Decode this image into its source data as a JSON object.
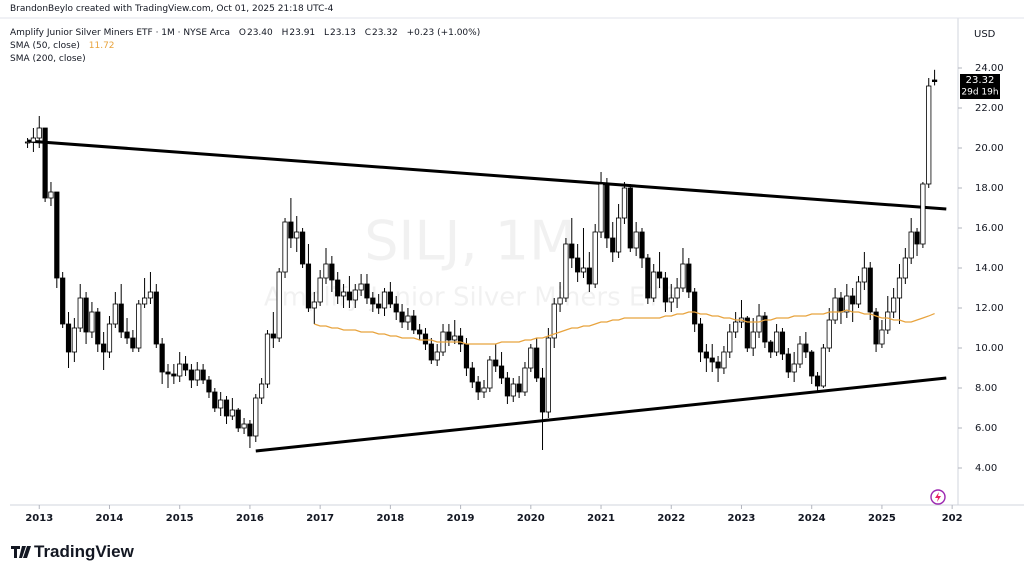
{
  "header": {
    "credit": "BrandonBeylo created with TradingView.com, Oct 01, 2025 21:18 UTC-4",
    "symbol": "Amplify Junior Silver Miners ETF · 1M · NYSE Arca",
    "ohlc": [
      {
        "key": "O",
        "value": "23.40"
      },
      {
        "key": "H",
        "value": "23.91"
      },
      {
        "key": "L",
        "value": "23.13"
      },
      {
        "key": "C",
        "value": "23.32"
      }
    ],
    "change": "+0.23 (+1.00%)"
  },
  "brand": "TradingView",
  "chart_data": {
    "type": "candlestick",
    "watermark": {
      "symbol": "SILJ, 1M",
      "name": "Amplify Junior Silver Miners ETF"
    },
    "currency": "USD",
    "last_label": "23.32",
    "countdown": "29d 19h",
    "up_color": "#ffffff",
    "down_color": "#000000",
    "outline_color": "#000000",
    "xlim": [
      "2012-08",
      "2026-02"
    ],
    "xticks": [
      {
        "value": "2013-01",
        "label": "2013"
      },
      {
        "value": "2014-01",
        "label": "2014"
      },
      {
        "value": "2015-01",
        "label": "2015"
      },
      {
        "value": "2016-01",
        "label": "2016"
      },
      {
        "value": "2017-01",
        "label": "2017"
      },
      {
        "value": "2018-01",
        "label": "2018"
      },
      {
        "value": "2019-01",
        "label": "2019"
      },
      {
        "value": "2020-01",
        "label": "2020"
      },
      {
        "value": "2021-01",
        "label": "2021"
      },
      {
        "value": "2022-01",
        "label": "2022"
      },
      {
        "value": "2023-01",
        "label": "2023"
      },
      {
        "value": "2024-01",
        "label": "2024"
      },
      {
        "value": "2025-01",
        "label": "2025"
      },
      {
        "value": "2026-01",
        "label": "202"
      }
    ],
    "ylim": [
      2.15,
      26.3
    ],
    "yticks": [
      {
        "value": 4,
        "label": "4.00"
      },
      {
        "value": 6,
        "label": "6.00"
      },
      {
        "value": 8,
        "label": "8.00"
      },
      {
        "value": 10,
        "label": "10.00"
      },
      {
        "value": 12,
        "label": "12.00"
      },
      {
        "value": 14,
        "label": "14.00"
      },
      {
        "value": 16,
        "label": "16.00"
      },
      {
        "value": 18,
        "label": "18.00"
      },
      {
        "value": 20,
        "label": "20.00"
      },
      {
        "value": 22,
        "label": "22.00"
      },
      {
        "value": 24,
        "label": "24.00"
      }
    ],
    "x": [
      "2012-11",
      "2012-12",
      "2013-01",
      "2013-02",
      "2013-03",
      "2013-04",
      "2013-05",
      "2013-06",
      "2013-07",
      "2013-08",
      "2013-09",
      "2013-10",
      "2013-11",
      "2013-12",
      "2014-01",
      "2014-02",
      "2014-03",
      "2014-04",
      "2014-05",
      "2014-06",
      "2014-07",
      "2014-08",
      "2014-09",
      "2014-10",
      "2014-11",
      "2014-12",
      "2015-01",
      "2015-02",
      "2015-03",
      "2015-04",
      "2015-05",
      "2015-06",
      "2015-07",
      "2015-08",
      "2015-09",
      "2015-10",
      "2015-11",
      "2015-12",
      "2016-01",
      "2016-02",
      "2016-03",
      "2016-04",
      "2016-05",
      "2016-06",
      "2016-07",
      "2016-08",
      "2016-09",
      "2016-10",
      "2016-11",
      "2016-12",
      "2017-01",
      "2017-02",
      "2017-03",
      "2017-04",
      "2017-05",
      "2017-06",
      "2017-07",
      "2017-08",
      "2017-09",
      "2017-10",
      "2017-11",
      "2017-12",
      "2018-01",
      "2018-02",
      "2018-03",
      "2018-04",
      "2018-05",
      "2018-06",
      "2018-07",
      "2018-08",
      "2018-09",
      "2018-10",
      "2018-11",
      "2018-12",
      "2019-01",
      "2019-02",
      "2019-03",
      "2019-04",
      "2019-05",
      "2019-06",
      "2019-07",
      "2019-08",
      "2019-09",
      "2019-10",
      "2019-11",
      "2019-12",
      "2020-01",
      "2020-02",
      "2020-03",
      "2020-04",
      "2020-05",
      "2020-06",
      "2020-07",
      "2020-08",
      "2020-09",
      "2020-10",
      "2020-11",
      "2020-12",
      "2021-01",
      "2021-02",
      "2021-03",
      "2021-04",
      "2021-05",
      "2021-06",
      "2021-07",
      "2021-08",
      "2021-09",
      "2021-10",
      "2021-11",
      "2021-12",
      "2022-01",
      "2022-02",
      "2022-03",
      "2022-04",
      "2022-05",
      "2022-06",
      "2022-07",
      "2022-08",
      "2022-09",
      "2022-10",
      "2022-11",
      "2022-12",
      "2023-01",
      "2023-02",
      "2023-03",
      "2023-04",
      "2023-05",
      "2023-06",
      "2023-07",
      "2023-08",
      "2023-09",
      "2023-10",
      "2023-11",
      "2023-12",
      "2024-01",
      "2024-02",
      "2024-03",
      "2024-04",
      "2024-05",
      "2024-06",
      "2024-07",
      "2024-08",
      "2024-09",
      "2024-10",
      "2024-11",
      "2024-12",
      "2025-01",
      "2025-02",
      "2025-03",
      "2025-04",
      "2025-05",
      "2025-06",
      "2025-07",
      "2025-08",
      "2025-09",
      "2025-10"
    ],
    "open": [
      20.3,
      20.3,
      20.5,
      21.0,
      17.5,
      17.8,
      13.5,
      11.2,
      9.8,
      11.0,
      12.5,
      10.8,
      11.8,
      10.2,
      9.8,
      11.2,
      12.2,
      10.8,
      10.5,
      10.0,
      12.2,
      12.5,
      12.8,
      10.2,
      8.8,
      8.7,
      8.6,
      9.2,
      8.9,
      8.4,
      8.9,
      8.4,
      7.8,
      7.0,
      7.4,
      6.6,
      6.9,
      6.0,
      6.2,
      5.6,
      7.5,
      8.2,
      10.7,
      10.5,
      13.8,
      16.3,
      15.5,
      15.8,
      14.2,
      12.0,
      12.3,
      13.5,
      14.2,
      13.4,
      12.6,
      12.8,
      12.4,
      12.9,
      13.2,
      12.5,
      12.2,
      12.0,
      12.8,
      12.2,
      11.8,
      11.3,
      11.6,
      10.9,
      10.7,
      10.2,
      9.4,
      9.8,
      10.8,
      10.4,
      10.6,
      10.2,
      9.0,
      8.3,
      7.8,
      8.0,
      9.4,
      9.1,
      8.5,
      7.6,
      8.2,
      7.8,
      9.0,
      10.0,
      8.5,
      6.8,
      10.5,
      12.2,
      12.5,
      15.2,
      14.5,
      13.8,
      14.0,
      13.2,
      15.8,
      18.2,
      15.5,
      14.8,
      16.5,
      18.0,
      15.0,
      15.8,
      14.5,
      12.5,
      13.8,
      13.5,
      12.3,
      12.5,
      13.0,
      14.2,
      12.8,
      11.2,
      9.8,
      9.5,
      9.3,
      9.0,
      9.8,
      10.8,
      11.3,
      11.5,
      10.0,
      10.8,
      11.6,
      10.3,
      9.8,
      10.8,
      9.7,
      8.8,
      9.2,
      10.2,
      9.8,
      8.6,
      8.1,
      10.0,
      11.4,
      12.5,
      11.8,
      12.6,
      12.2,
      13.3,
      14.0,
      11.8,
      10.2,
      10.9,
      11.8,
      12.5,
      13.5,
      14.5,
      15.8,
      15.2,
      18.2,
      23.4
    ],
    "high": [
      20.5,
      21.0,
      21.6,
      21.0,
      18.3,
      17.8,
      13.8,
      11.8,
      11.5,
      13.2,
      12.8,
      12.3,
      12.0,
      10.8,
      11.6,
      12.8,
      13.2,
      11.5,
      10.9,
      12.4,
      13.5,
      13.8,
      13.2,
      10.5,
      9.2,
      9.2,
      9.8,
      9.6,
      9.2,
      9.3,
      9.2,
      8.6,
      8.0,
      7.8,
      7.6,
      7.5,
      7.0,
      6.5,
      6.4,
      7.7,
      8.5,
      10.9,
      11.8,
      14.0,
      16.5,
      17.5,
      16.6,
      16.0,
      15.2,
      12.8,
      13.9,
      15.0,
      14.6,
      13.8,
      13.2,
      13.6,
      13.2,
      13.7,
      13.7,
      12.8,
      12.7,
      13.0,
      13.3,
      12.6,
      12.2,
      12.0,
      11.9,
      11.2,
      11.0,
      10.5,
      10.2,
      11.2,
      11.2,
      11.4,
      11.0,
      10.5,
      9.3,
      8.6,
      8.4,
      9.6,
      10.2,
      9.8,
      8.8,
      8.5,
      8.6,
      9.3,
      10.2,
      10.5,
      9.0,
      11.0,
      12.5,
      13.3,
      15.5,
      16.5,
      15.2,
      16.0,
      14.8,
      16.2,
      18.8,
      18.5,
      16.3,
      17.2,
      18.3,
      18.2,
      16.3,
      16.0,
      14.7,
      14.2,
      14.8,
      13.8,
      13.2,
      13.5,
      15.0,
      14.5,
      13.0,
      11.5,
      10.2,
      10.2,
      9.6,
      10.1,
      11.2,
      11.8,
      12.4,
      11.6,
      11.5,
      12.2,
      11.8,
      10.4,
      11.2,
      11.0,
      10.0,
      9.8,
      10.6,
      10.8,
      9.9,
      8.8,
      10.2,
      12.0,
      13.0,
      12.8,
      13.2,
      13.0,
      13.6,
      14.8,
      14.3,
      12.0,
      11.4,
      12.6,
      13.0,
      14.2,
      15.0,
      16.5,
      16.0,
      18.3,
      23.5,
      23.91
    ],
    "low": [
      20.0,
      19.8,
      20.0,
      17.3,
      17.1,
      13.0,
      11.0,
      9.0,
      9.3,
      10.8,
      10.2,
      10.5,
      9.8,
      8.9,
      9.5,
      11.0,
      10.5,
      10.2,
      9.8,
      9.8,
      12.0,
      12.2,
      10.0,
      8.2,
      8.0,
      8.2,
      8.3,
      8.6,
      8.0,
      8.1,
      8.2,
      7.5,
      6.8,
      6.6,
      6.2,
      6.4,
      5.8,
      5.7,
      5.0,
      5.3,
      7.2,
      8.0,
      10.0,
      10.3,
      13.5,
      15.0,
      14.8,
      14.0,
      11.8,
      11.2,
      12.1,
      13.2,
      12.8,
      12.2,
      12.0,
      12.0,
      12.0,
      12.6,
      12.2,
      11.8,
      11.7,
      11.6,
      12.0,
      11.4,
      11.0,
      10.9,
      10.7,
      10.4,
      9.9,
      9.2,
      9.1,
      9.6,
      10.1,
      10.2,
      9.8,
      8.6,
      8.0,
      7.4,
      7.5,
      7.8,
      8.8,
      8.2,
      7.2,
      7.3,
      7.5,
      7.6,
      8.8,
      8.3,
      4.9,
      6.5,
      10.0,
      11.8,
      12.3,
      14.0,
      13.3,
      13.5,
      12.8,
      13.0,
      15.5,
      15.0,
      14.3,
      14.5,
      16.2,
      14.8,
      14.6,
      14.0,
      12.2,
      12.3,
      13.0,
      11.8,
      11.8,
      12.0,
      12.8,
      12.5,
      10.8,
      9.3,
      8.8,
      8.8,
      8.3,
      8.7,
      9.5,
      10.5,
      11.0,
      9.8,
      9.6,
      10.5,
      10.0,
      9.5,
      9.6,
      9.4,
      8.5,
      8.3,
      9.0,
      9.5,
      8.2,
      7.8,
      8.0,
      9.8,
      11.2,
      11.2,
      11.5,
      11.3,
      12.0,
      12.9,
      11.4,
      9.8,
      10.0,
      10.7,
      11.5,
      11.2,
      13.2,
      14.2,
      14.6,
      15.0,
      18.0,
      23.13
    ],
    "close": [
      20.3,
      20.5,
      21.0,
      17.5,
      17.8,
      13.5,
      11.2,
      9.8,
      11.0,
      12.5,
      10.8,
      11.8,
      10.2,
      9.8,
      11.2,
      12.2,
      10.8,
      10.5,
      10.0,
      12.2,
      12.5,
      12.8,
      10.2,
      8.8,
      8.7,
      8.6,
      9.2,
      8.9,
      8.4,
      8.9,
      8.4,
      7.8,
      7.0,
      7.4,
      6.6,
      6.9,
      6.0,
      6.2,
      5.6,
      7.5,
      8.2,
      10.7,
      10.5,
      13.8,
      16.3,
      15.5,
      15.8,
      14.2,
      12.0,
      12.3,
      13.5,
      14.2,
      13.4,
      12.6,
      12.8,
      12.4,
      12.9,
      13.2,
      12.5,
      12.2,
      12.0,
      12.8,
      12.2,
      11.8,
      11.3,
      11.6,
      10.9,
      10.7,
      10.2,
      9.4,
      9.8,
      10.8,
      10.4,
      10.6,
      10.2,
      9.0,
      8.3,
      7.8,
      8.0,
      9.4,
      9.1,
      8.5,
      7.6,
      8.2,
      7.8,
      9.0,
      10.0,
      8.5,
      6.8,
      10.5,
      12.2,
      12.5,
      15.2,
      14.5,
      13.8,
      14.0,
      13.2,
      15.8,
      18.2,
      15.5,
      14.8,
      16.5,
      18.0,
      15.0,
      15.8,
      14.5,
      12.5,
      13.8,
      13.5,
      12.3,
      12.5,
      13.0,
      14.2,
      12.8,
      11.2,
      9.8,
      9.5,
      9.3,
      9.0,
      9.8,
      10.8,
      11.3,
      11.5,
      10.0,
      10.8,
      11.6,
      10.3,
      9.8,
      10.8,
      9.7,
      8.8,
      9.2,
      10.2,
      9.8,
      8.6,
      8.1,
      10.0,
      11.4,
      12.5,
      11.8,
      12.6,
      12.2,
      13.3,
      14.0,
      11.8,
      10.2,
      10.9,
      11.8,
      12.5,
      13.5,
      14.5,
      15.8,
      15.2,
      18.2,
      23.1,
      23.32
    ],
    "sma": {
      "name": "SMA (50, close)",
      "value_label": "11.72",
      "color": "#e8a33d",
      "values": [
        null,
        null,
        null,
        null,
        null,
        null,
        null,
        null,
        null,
        null,
        null,
        null,
        null,
        null,
        null,
        null,
        null,
        null,
        null,
        null,
        null,
        null,
        null,
        null,
        null,
        null,
        null,
        null,
        null,
        null,
        null,
        null,
        null,
        null,
        null,
        null,
        null,
        null,
        null,
        null,
        null,
        null,
        null,
        null,
        null,
        null,
        null,
        null,
        null,
        11.2,
        11.1,
        11.1,
        11.0,
        11.0,
        10.9,
        10.9,
        10.9,
        10.8,
        10.8,
        10.8,
        10.7,
        10.7,
        10.6,
        10.6,
        10.5,
        10.5,
        10.5,
        10.4,
        10.4,
        10.4,
        10.3,
        10.3,
        10.3,
        10.3,
        10.3,
        10.2,
        10.2,
        10.2,
        10.2,
        10.2,
        10.2,
        10.3,
        10.3,
        10.3,
        10.3,
        10.4,
        10.4,
        10.5,
        10.5,
        10.6,
        10.7,
        10.8,
        10.9,
        11.0,
        11.0,
        11.1,
        11.1,
        11.2,
        11.3,
        11.3,
        11.4,
        11.4,
        11.5,
        11.5,
        11.5,
        11.5,
        11.5,
        11.5,
        11.5,
        11.6,
        11.6,
        11.7,
        11.7,
        11.8,
        11.8,
        11.7,
        11.7,
        11.6,
        11.6,
        11.5,
        11.5,
        11.4,
        11.4,
        11.3,
        11.3,
        11.3,
        11.4,
        11.4,
        11.5,
        11.5,
        11.5,
        11.6,
        11.6,
        11.6,
        11.7,
        11.7,
        11.7,
        11.8,
        11.8,
        11.8,
        11.9,
        11.8,
        11.8,
        11.7,
        11.7,
        11.6,
        11.5,
        11.5,
        11.4,
        11.4,
        11.3,
        11.3,
        11.4,
        11.5,
        11.6,
        11.72
      ]
    },
    "sma200": {
      "name": "SMA (200, close)"
    },
    "trendlines": [
      {
        "x": [
          "2012-11",
          "2025-12"
        ],
        "y": [
          20.35,
          16.95
        ]
      },
      {
        "x": [
          "2016-02",
          "2025-12"
        ],
        "y": [
          4.85,
          8.5
        ]
      }
    ]
  }
}
